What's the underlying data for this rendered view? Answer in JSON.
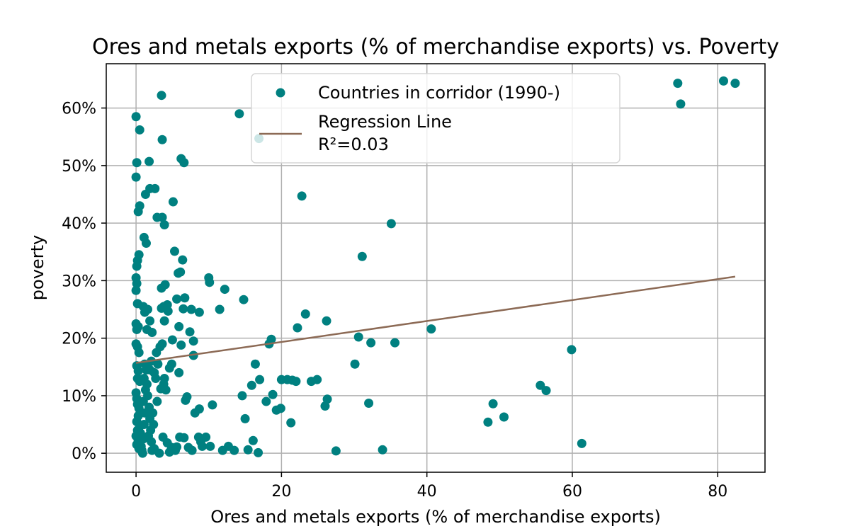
{
  "chart_data": {
    "type": "scatter",
    "title": "Ores and metals exports (% of merchandise exports) vs. Poverty",
    "xlabel": "Ores and metals exports (% of merchandise exports)",
    "ylabel": "poverty",
    "xlim": [
      -4.1,
      86.5
    ],
    "ylim": [
      -0.033,
      0.677
    ],
    "xticks": [
      0,
      20,
      40,
      60,
      80
    ],
    "xtick_labels": [
      "0",
      "20",
      "40",
      "60",
      "80"
    ],
    "yticks": [
      0,
      0.1,
      0.2,
      0.3,
      0.4,
      0.5,
      0.6
    ],
    "ytick_labels": [
      "0%",
      "10%",
      "20%",
      "30%",
      "40%",
      "50%",
      "60%"
    ],
    "grid": true,
    "legend_placement": "upper-center",
    "colors": {
      "points": "#008080",
      "regression": "#8c6a55"
    },
    "series": [
      {
        "name": "Countries in corridor (1990-)",
        "kind": "scatter",
        "points": [
          [
            0.0,
            0.585
          ],
          [
            0.1,
            0.505
          ],
          [
            0.0,
            0.48
          ],
          [
            0.5,
            0.562
          ],
          [
            0.3,
            0.42
          ],
          [
            0.5,
            0.43
          ],
          [
            0.2,
            0.335
          ],
          [
            0.4,
            0.345
          ],
          [
            0.1,
            0.325
          ],
          [
            0.0,
            0.305
          ],
          [
            0.1,
            0.295
          ],
          [
            0.0,
            0.283
          ],
          [
            0.2,
            0.26
          ],
          [
            0.0,
            0.225
          ],
          [
            0.3,
            0.22
          ],
          [
            0.1,
            0.215
          ],
          [
            0.0,
            0.19
          ],
          [
            0.2,
            0.185
          ],
          [
            0.4,
            0.175
          ],
          [
            0.1,
            0.152
          ],
          [
            0.3,
            0.143
          ],
          [
            0.2,
            0.13
          ],
          [
            0.5,
            0.125
          ],
          [
            0.0,
            0.105
          ],
          [
            0.1,
            0.095
          ],
          [
            0.2,
            0.085
          ],
          [
            0.4,
            0.078
          ],
          [
            0.3,
            0.065
          ],
          [
            0.1,
            0.055
          ],
          [
            0.5,
            0.047
          ],
          [
            0.2,
            0.04
          ],
          [
            0.0,
            0.03
          ],
          [
            0.3,
            0.022
          ],
          [
            0.1,
            0.015
          ],
          [
            0.4,
            0.008
          ],
          [
            0.6,
            0.035
          ],
          [
            0.7,
            0.012
          ],
          [
            0.8,
            0.005
          ],
          [
            0.9,
            0.0
          ],
          [
            1.0,
            0.025
          ],
          [
            1.1,
            0.05
          ],
          [
            1.2,
            0.07
          ],
          [
            1.0,
            0.09
          ],
          [
            1.3,
            0.11
          ],
          [
            1.1,
            0.13
          ],
          [
            1.4,
            0.145
          ],
          [
            1.2,
            0.155
          ],
          [
            1.5,
            0.12
          ],
          [
            1.6,
            0.1
          ],
          [
            1.8,
            0.08
          ],
          [
            1.9,
            0.06
          ],
          [
            2.0,
            0.04
          ],
          [
            2.1,
            0.02
          ],
          [
            2.2,
            0.005
          ],
          [
            1.7,
            0.03
          ],
          [
            2.3,
            0.07
          ],
          [
            2.4,
            0.05
          ],
          [
            1.9,
            0.145
          ],
          [
            2.1,
            0.16
          ],
          [
            2.5,
            0.14
          ],
          [
            1.0,
            0.255
          ],
          [
            1.2,
            0.245
          ],
          [
            1.6,
            0.25
          ],
          [
            1.9,
            0.23
          ],
          [
            2.2,
            0.21
          ],
          [
            1.5,
            0.215
          ],
          [
            1.1,
            0.375
          ],
          [
            1.4,
            0.365
          ],
          [
            1.3,
            0.45
          ],
          [
            1.9,
            0.46
          ],
          [
            2.6,
            0.46
          ],
          [
            1.8,
            0.507
          ],
          [
            2.9,
            0.41
          ],
          [
            3.6,
            0.41
          ],
          [
            3.9,
            0.397
          ],
          [
            3.6,
            0.545
          ],
          [
            3.5,
            0.622
          ],
          [
            5.1,
            0.437
          ],
          [
            5.3,
            0.351
          ],
          [
            6.2,
            0.512
          ],
          [
            6.6,
            0.505
          ],
          [
            6.4,
            0.336
          ],
          [
            6.1,
            0.315
          ],
          [
            5.8,
            0.313
          ],
          [
            3.5,
            0.287
          ],
          [
            4.0,
            0.293
          ],
          [
            3.8,
            0.255
          ],
          [
            4.3,
            0.258
          ],
          [
            3.5,
            0.252
          ],
          [
            4.4,
            0.247
          ],
          [
            3.9,
            0.23
          ],
          [
            5.0,
            0.197
          ],
          [
            5.9,
            0.22
          ],
          [
            5.6,
            0.268
          ],
          [
            6.7,
            0.27
          ],
          [
            6.5,
            0.251
          ],
          [
            7.6,
            0.25
          ],
          [
            8.7,
            0.245
          ],
          [
            7.4,
            0.211
          ],
          [
            7.9,
            0.195
          ],
          [
            6.2,
            0.188
          ],
          [
            4.9,
            0.155
          ],
          [
            4.6,
            0.148
          ],
          [
            3.6,
            0.19
          ],
          [
            3.3,
            0.185
          ],
          [
            2.8,
            0.175
          ],
          [
            3.0,
            0.155
          ],
          [
            2.7,
            0.13
          ],
          [
            3.9,
            0.13
          ],
          [
            3.8,
            0.12
          ],
          [
            4.1,
            0.11
          ],
          [
            3.4,
            0.112
          ],
          [
            2.9,
            0.09
          ],
          [
            5.9,
            0.14
          ],
          [
            7.0,
            0.098
          ],
          [
            6.8,
            0.092
          ],
          [
            8.1,
            0.07
          ],
          [
            8.7,
            0.077
          ],
          [
            7.9,
            0.17
          ],
          [
            10.0,
            0.305
          ],
          [
            10.1,
            0.297
          ],
          [
            11.5,
            0.25
          ],
          [
            12.2,
            0.285
          ],
          [
            14.2,
            0.59
          ],
          [
            14.8,
            0.267
          ],
          [
            16.9,
            0.547
          ],
          [
            10.5,
            0.084
          ],
          [
            14.6,
            0.1
          ],
          [
            15.0,
            0.06
          ],
          [
            15.9,
            0.118
          ],
          [
            16.4,
            0.155
          ],
          [
            17.0,
            0.128
          ],
          [
            17.9,
            0.09
          ],
          [
            18.3,
            0.19
          ],
          [
            18.6,
            0.198
          ],
          [
            18.8,
            0.102
          ],
          [
            19.3,
            0.075
          ],
          [
            19.9,
            0.078
          ],
          [
            20.0,
            0.128
          ],
          [
            20.8,
            0.128
          ],
          [
            21.5,
            0.127
          ],
          [
            22.0,
            0.125
          ],
          [
            22.2,
            0.218
          ],
          [
            21.3,
            0.053
          ],
          [
            22.8,
            0.447
          ],
          [
            23.3,
            0.242
          ],
          [
            24.1,
            0.125
          ],
          [
            24.9,
            0.128
          ],
          [
            26.2,
            0.23
          ],
          [
            26.0,
            0.082
          ],
          [
            26.3,
            0.094
          ],
          [
            30.1,
            0.155
          ],
          [
            30.6,
            0.202
          ],
          [
            31.1,
            0.342
          ],
          [
            32.0,
            0.087
          ],
          [
            32.3,
            0.192
          ],
          [
            33.9,
            0.006
          ],
          [
            35.1,
            0.399
          ],
          [
            35.6,
            0.192
          ],
          [
            40.6,
            0.216
          ],
          [
            27.5,
            0.004
          ],
          [
            48.4,
            0.054
          ],
          [
            49.1,
            0.086
          ],
          [
            50.6,
            0.063
          ],
          [
            55.6,
            0.118
          ],
          [
            56.4,
            0.109
          ],
          [
            59.9,
            0.18
          ],
          [
            61.3,
            0.017
          ],
          [
            74.5,
            0.643
          ],
          [
            74.9,
            0.607
          ],
          [
            80.8,
            0.647
          ],
          [
            82.4,
            0.643
          ],
          [
            4.3,
            0.018
          ],
          [
            4.9,
            0.01
          ],
          [
            5.4,
            0.005
          ],
          [
            6.0,
            0.028
          ],
          [
            6.6,
            0.027
          ],
          [
            7.2,
            0.01
          ],
          [
            8.6,
            0.028
          ],
          [
            9.1,
            0.012
          ],
          [
            9.6,
            0.028
          ],
          [
            10.2,
            0.012
          ],
          [
            11.9,
            0.005
          ],
          [
            12.7,
            0.012
          ],
          [
            13.5,
            0.005
          ],
          [
            15.4,
            0.006
          ],
          [
            16.1,
            0.022
          ],
          [
            16.8,
            0.001
          ],
          [
            2.5,
            0.008
          ],
          [
            3.2,
            0.0
          ],
          [
            3.7,
            0.028
          ],
          [
            4.6,
            0.002
          ],
          [
            5.6,
            0.011
          ],
          [
            7.7,
            0.005
          ],
          [
            8.9,
            0.02
          ]
        ]
      },
      {
        "name": "Regression Line\nR²=0.03",
        "kind": "line",
        "points": [
          [
            0.0,
            0.157
          ],
          [
            82.4,
            0.307
          ]
        ]
      }
    ]
  }
}
